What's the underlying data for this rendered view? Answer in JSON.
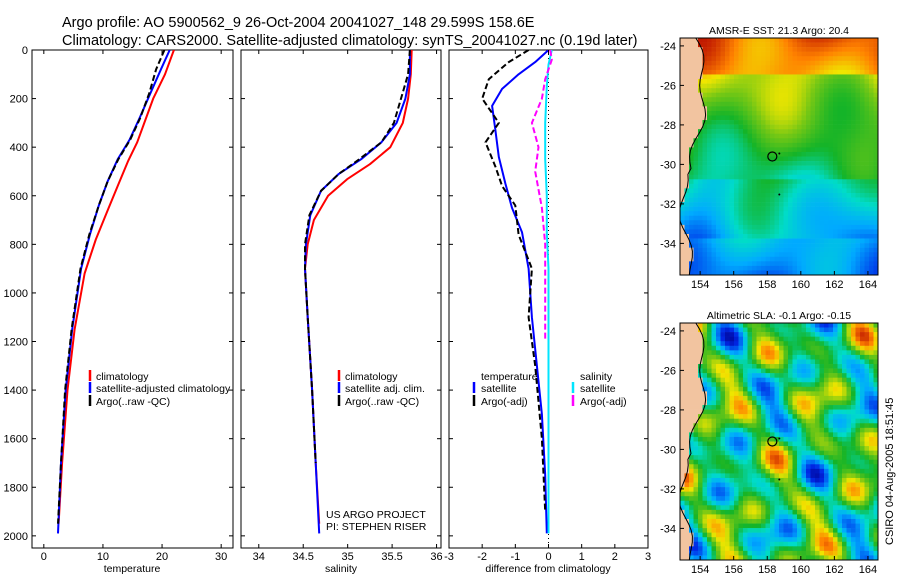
{
  "title_line1": "Argo profile: AO 5900562_9 26-Oct-2004 20041027_148 29.599S 158.6E",
  "title_line2": "Climatology: CARS2000. Satellite-adjusted climatology: synTS_20041027.nc (0.19d later)",
  "project_line1": "US ARGO PROJECT",
  "project_line2": "PI: STEPHEN RISER",
  "side_label": "CSIRO 04-Aug-2005 18:51:45",
  "colors": {
    "red": "#ff0000",
    "blue": "#0000ff",
    "black": "#000000",
    "cyan": "#00e5ff",
    "magenta": "#ff00ff"
  },
  "chart_data": [
    {
      "type": "line",
      "id": "temperature",
      "xlabel": "temperature",
      "ylabel": "",
      "xlim": [
        -2,
        32
      ],
      "ylim": [
        2050,
        0
      ],
      "xticks": [
        0,
        10,
        20,
        30
      ],
      "yticks": [
        0,
        200,
        400,
        600,
        800,
        1000,
        1200,
        1400,
        1600,
        1800,
        2000
      ],
      "legend": [
        "climatology",
        "satellite-adjusted climatology",
        "Argo(..raw -QC)"
      ],
      "legend_position": "lower-right",
      "series": [
        {
          "name": "climatology",
          "color": "red",
          "dash": "",
          "x": [
            22.0,
            20.5,
            18.5,
            17.0,
            15.8,
            14.2,
            12.5,
            10.8,
            8.8,
            6.9,
            5.2,
            4.0,
            3.1,
            2.5
          ],
          "y": [
            0,
            100,
            200,
            300,
            380,
            460,
            560,
            660,
            780,
            920,
            1150,
            1400,
            1700,
            1950
          ]
        },
        {
          "name": "satellite-adjusted climatology",
          "color": "blue",
          "dash": "",
          "x": [
            21.3,
            19.8,
            18.0,
            16.2,
            14.5,
            12.5,
            10.8,
            9.3,
            7.8,
            6.3,
            4.8,
            3.7,
            2.9,
            2.4
          ],
          "y": [
            0,
            80,
            180,
            280,
            370,
            450,
            540,
            640,
            760,
            900,
            1150,
            1400,
            1700,
            1990
          ]
        },
        {
          "name": "Argo(..raw -QC)",
          "color": "black",
          "dash": "6,3",
          "x": [
            20.4,
            19.0,
            17.8,
            16.3,
            14.6,
            12.6,
            10.8,
            9.3,
            7.7,
            6.2,
            4.7,
            3.6,
            2.9,
            2.4
          ],
          "y": [
            0,
            80,
            180,
            280,
            370,
            450,
            540,
            640,
            760,
            900,
            1150,
            1400,
            1700,
            1950
          ]
        }
      ]
    },
    {
      "type": "line",
      "id": "salinity",
      "xlabel": "salinity",
      "ylabel": "",
      "xlim": [
        33.8,
        36.05
      ],
      "ylim": [
        2050,
        0
      ],
      "xticks": [
        34,
        34.5,
        35,
        35.5,
        36
      ],
      "yticks": [
        0,
        200,
        400,
        600,
        800,
        1000,
        1200,
        1400,
        1600,
        1800,
        2000
      ],
      "legend": [
        "climatology",
        "satellite adj. clim.",
        "Argo(..raw -QC)"
      ],
      "legend_position": "lower-right",
      "series": [
        {
          "name": "climatology",
          "color": "red",
          "dash": "",
          "x": [
            35.72,
            35.71,
            35.68,
            35.62,
            35.48,
            35.25,
            35.0,
            34.78,
            34.62,
            34.55,
            34.52,
            34.55,
            34.6,
            34.64,
            34.68
          ],
          "y": [
            0,
            100,
            200,
            300,
            400,
            470,
            530,
            600,
            700,
            800,
            900,
            1100,
            1400,
            1700,
            1950
          ]
        },
        {
          "name": "satellite adj. clim.",
          "color": "blue",
          "dash": "",
          "x": [
            35.7,
            35.7,
            35.65,
            35.55,
            35.38,
            35.15,
            34.9,
            34.7,
            34.58,
            34.53,
            34.52,
            34.55,
            34.6,
            34.64,
            34.68
          ],
          "y": [
            0,
            100,
            200,
            300,
            380,
            450,
            510,
            580,
            680,
            800,
            900,
            1100,
            1400,
            1700,
            1990
          ]
        },
        {
          "name": "Argo(..raw -QC)",
          "color": "black",
          "dash": "6,3",
          "x": [
            35.7,
            35.68,
            35.6,
            35.52,
            35.38,
            35.13,
            34.9,
            34.7,
            34.57,
            34.52,
            34.52,
            34.55,
            34.6,
            34.64
          ],
          "y": [
            0,
            100,
            200,
            300,
            380,
            450,
            510,
            580,
            680,
            800,
            900,
            1100,
            1400,
            1700
          ]
        }
      ]
    },
    {
      "type": "line",
      "id": "difference",
      "xlabel": "difference from climatology",
      "ylabel": "",
      "xlim": [
        -3,
        3
      ],
      "ylim": [
        2050,
        0
      ],
      "xticks": [
        -3,
        -2,
        -1,
        0,
        1,
        2,
        3
      ],
      "yticks": [
        0,
        200,
        400,
        600,
        800,
        1000,
        1200,
        1400,
        1600,
        1800,
        2000
      ],
      "zero_line": 0,
      "legend_left": [
        "temperature",
        "satellite",
        "Argo(-adj)"
      ],
      "legend_right": [
        "salinity",
        "satellite",
        "Argo(-adj)"
      ],
      "legend_position": "lower-center",
      "series": [
        {
          "name": "temperature satellite",
          "color": "blue",
          "dash": "",
          "x": [
            0.0,
            -0.4,
            -0.9,
            -1.4,
            -1.7,
            -1.6,
            -1.5,
            -1.3,
            -1.1,
            -0.8,
            -0.6,
            -0.5,
            -0.35,
            -0.2,
            -0.1,
            -0.05
          ],
          "y": [
            0,
            50,
            100,
            160,
            230,
            330,
            440,
            550,
            650,
            750,
            900,
            1100,
            1300,
            1500,
            1750,
            1990
          ]
        },
        {
          "name": "temperature Argo(-adj)",
          "color": "black",
          "dash": "6,3",
          "x": [
            -0.6,
            -1.2,
            -1.8,
            -2.0,
            -1.5,
            -1.9,
            -1.6,
            -1.4,
            -1.0,
            -0.9,
            -0.5,
            -0.6,
            -0.4,
            -0.2,
            -0.1
          ],
          "y": [
            0,
            50,
            120,
            200,
            300,
            380,
            480,
            560,
            640,
            760,
            900,
            1100,
            1300,
            1600,
            1900
          ]
        },
        {
          "name": "salinity satellite",
          "color": "cyan",
          "dash": "",
          "x": [
            0.1,
            0.0,
            -0.05,
            -0.1,
            -0.1,
            -0.05,
            -0.05,
            0.0,
            0.0,
            0.0,
            0.0,
            0.0,
            0.0
          ],
          "y": [
            0,
            60,
            150,
            300,
            450,
            600,
            750,
            900,
            1100,
            1300,
            1500,
            1750,
            1990
          ]
        },
        {
          "name": "salinity Argo(-adj)",
          "color": "magenta",
          "dash": "6,3",
          "x": [
            0.05,
            0.1,
            -0.1,
            -0.2,
            -0.5,
            -0.3,
            -0.4,
            -0.2,
            -0.1,
            -0.1,
            -0.1
          ],
          "y": [
            0,
            40,
            120,
            200,
            300,
            400,
            500,
            650,
            800,
            1000,
            1200
          ]
        }
      ]
    },
    {
      "type": "heatmap",
      "id": "sst_map",
      "title": "AMSR-E SST: 21.3 Argo: 20.4",
      "xticks": [
        154,
        156,
        158,
        160,
        162,
        164
      ],
      "yticks": [
        -24,
        -26,
        -28,
        -30,
        -32,
        -34
      ],
      "xlim": [
        152.8,
        164.6
      ],
      "ylim": [
        -35.6,
        -23.6
      ],
      "marker": {
        "lon": 158.6,
        "lat": -29.6
      }
    },
    {
      "type": "heatmap",
      "id": "sla_map",
      "title": "Altimetric SLA: -0.1 Argo: -0.15",
      "xticks": [
        154,
        156,
        158,
        160,
        162,
        164
      ],
      "yticks": [
        -24,
        -26,
        -28,
        -30,
        -32,
        -34
      ],
      "xlim": [
        152.8,
        164.6
      ],
      "ylim": [
        -35.6,
        -23.6
      ],
      "marker": {
        "lon": 158.6,
        "lat": -29.6
      }
    }
  ]
}
